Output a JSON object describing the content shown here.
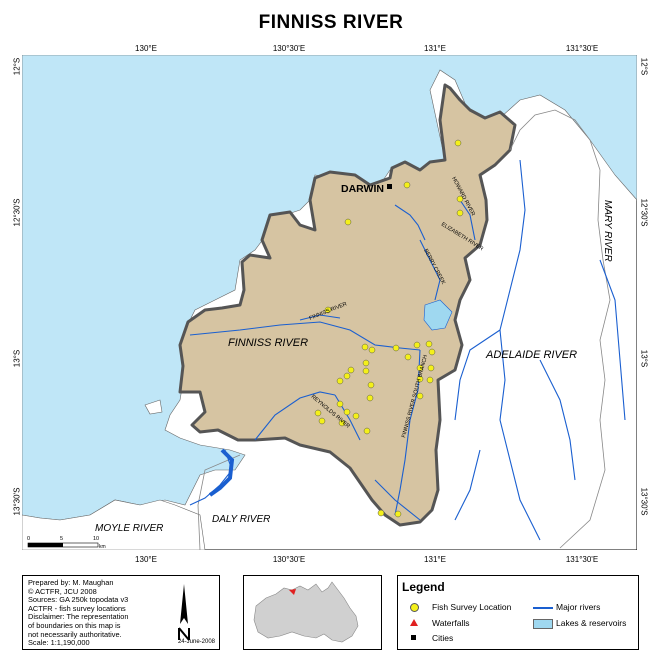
{
  "title": "FINNISS RIVER",
  "graticule": {
    "top": [
      "130°E",
      "130°30'E",
      "131°E",
      "131°30'E"
    ],
    "bottom": [
      "130°E",
      "130°30'E",
      "131°E",
      "131°30'E"
    ],
    "left": [
      "12°S",
      "12°30'S",
      "13°S",
      "13°30'S"
    ],
    "right": [
      "12°S",
      "12°30'S",
      "13°S",
      "13°30'S"
    ]
  },
  "map_labels": {
    "darwin": "DARWIN",
    "finniss_river": "FINNISS RIVER",
    "finniss_river_small": "FINNISS RIVER",
    "adelaide_river": "ADELAIDE RIVER",
    "mary_river": "MARY RIVER",
    "moyle_river": "MOYLE RIVER",
    "daly_river": "DALY RIVER",
    "howard_river": "HOWARD RIVER",
    "elizabeth_river": "ELIZABETH RIVER",
    "berry_creek": "BERRY CREEK",
    "reynolds_river": "REYNOLDS RIVER",
    "finniss_south_branch": "FINNISS RIVER SOUTH BRANCH"
  },
  "scale_bar": {
    "ticks": [
      "0",
      "5",
      "10"
    ],
    "unit": "km"
  },
  "info": {
    "lines": [
      "Prepared by: M. Maughan",
      "© ACTFR, JCU 2008",
      "Sources: GA 250k topodata v3",
      "ACTFR - fish survey locations",
      "Disclaimer: The representation",
      "of boundaries on this map is",
      "not necessarily authoritative.",
      "Scale: 1:1,190,000"
    ],
    "date": "24-June-2008",
    "north_icon": "north-arrow-icon"
  },
  "legend": {
    "title": "Legend",
    "items": [
      {
        "label": "Fish Survey Location",
        "icon": "yellow-dot-icon"
      },
      {
        "label": "Major rivers",
        "icon": "blue-line-icon"
      },
      {
        "label": "Waterfalls",
        "icon": "red-triangle-icon"
      },
      {
        "label": "Lakes & reservoirs",
        "icon": "light-blue-box-icon"
      },
      {
        "label": "Cities",
        "icon": "black-square-icon"
      }
    ]
  },
  "colors": {
    "sea": "#bfe6f7",
    "catchment": "#d6c4a2",
    "boundary": "#555555",
    "river": "#1a5fd0",
    "survey_point": "#f4f01a"
  }
}
